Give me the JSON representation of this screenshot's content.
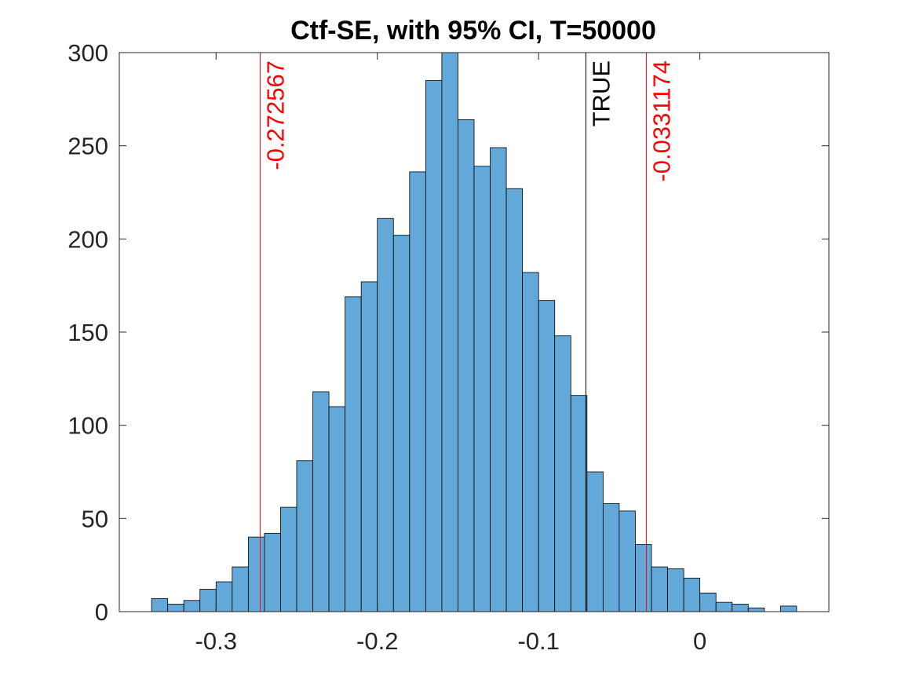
{
  "chart_data": {
    "type": "bar",
    "title": "Ctf-SE, with 95% CI, T=50000",
    "xlabel": "",
    "ylabel": "",
    "xlim": [
      -0.36,
      0.08
    ],
    "ylim": [
      0,
      300
    ],
    "xticks": [
      -0.3,
      -0.2,
      -0.1,
      0
    ],
    "xtick_labels": [
      "-0.3",
      "-0.2",
      "-0.1",
      "0"
    ],
    "yticks": [
      0,
      50,
      100,
      150,
      200,
      250,
      300
    ],
    "ytick_labels": [
      "0",
      "50",
      "100",
      "150",
      "200",
      "250",
      "300"
    ],
    "bin_width": 0.01,
    "bins": [
      {
        "x0": -0.34,
        "count": 7
      },
      {
        "x0": -0.33,
        "count": 4
      },
      {
        "x0": -0.32,
        "count": 6
      },
      {
        "x0": -0.31,
        "count": 12
      },
      {
        "x0": -0.3,
        "count": 16
      },
      {
        "x0": -0.29,
        "count": 24
      },
      {
        "x0": -0.28,
        "count": 40
      },
      {
        "x0": -0.27,
        "count": 42
      },
      {
        "x0": -0.26,
        "count": 56
      },
      {
        "x0": -0.25,
        "count": 81
      },
      {
        "x0": -0.24,
        "count": 118
      },
      {
        "x0": -0.23,
        "count": 110
      },
      {
        "x0": -0.22,
        "count": 169
      },
      {
        "x0": -0.21,
        "count": 177
      },
      {
        "x0": -0.2,
        "count": 211
      },
      {
        "x0": -0.19,
        "count": 202
      },
      {
        "x0": -0.18,
        "count": 236
      },
      {
        "x0": -0.17,
        "count": 285
      },
      {
        "x0": -0.16,
        "count": 300
      },
      {
        "x0": -0.15,
        "count": 264
      },
      {
        "x0": -0.14,
        "count": 239
      },
      {
        "x0": -0.13,
        "count": 249
      },
      {
        "x0": -0.12,
        "count": 227
      },
      {
        "x0": -0.11,
        "count": 182
      },
      {
        "x0": -0.1,
        "count": 167
      },
      {
        "x0": -0.09,
        "count": 148
      },
      {
        "x0": -0.08,
        "count": 116
      },
      {
        "x0": -0.07,
        "count": 75
      },
      {
        "x0": -0.06,
        "count": 58
      },
      {
        "x0": -0.05,
        "count": 54
      },
      {
        "x0": -0.04,
        "count": 36
      },
      {
        "x0": -0.03,
        "count": 24
      },
      {
        "x0": -0.02,
        "count": 23
      },
      {
        "x0": -0.01,
        "count": 18
      },
      {
        "x0": 0.0,
        "count": 10
      },
      {
        "x0": 0.01,
        "count": 5
      },
      {
        "x0": 0.02,
        "count": 4
      },
      {
        "x0": 0.03,
        "count": 2
      },
      {
        "x0": 0.04,
        "count": 0
      },
      {
        "x0": 0.05,
        "count": 3
      }
    ],
    "vertical_lines": [
      {
        "x": -0.272567,
        "label": "-0.272567",
        "color": "#ff0000"
      },
      {
        "x": -0.0707,
        "label": "TRUE",
        "color": "#000000"
      },
      {
        "x": -0.0331174,
        "label": "-0.0331174",
        "color": "#ff0000"
      }
    ],
    "bar_color": "#62a8d8",
    "bar_edge_color": "#000000",
    "grid": false,
    "legend": "none"
  }
}
